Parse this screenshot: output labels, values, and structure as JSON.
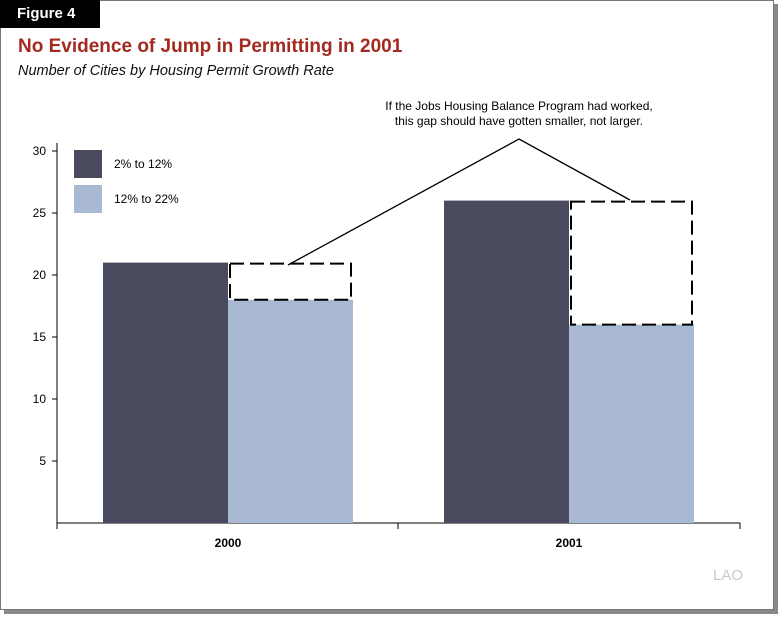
{
  "figure_label": "Figure 4",
  "watermark": "LAO",
  "chart_data": {
    "type": "bar",
    "title": "No Evidence of Jump in Permitting in 2001",
    "subtitle": "Number of Cities by Housing Permit Growth Rate",
    "categories": [
      "2000",
      "2001"
    ],
    "series": [
      {
        "name": "2% to 12%",
        "values": [
          21,
          26
        ],
        "color": "#4a4a5e"
      },
      {
        "name": "12% to 22%",
        "values": [
          18,
          16
        ],
        "color": "#a9b8d3"
      }
    ],
    "yticks": [
      5,
      10,
      15,
      20,
      25,
      30
    ],
    "ylim": [
      0,
      30
    ],
    "grid": false,
    "legend": "top-left",
    "annotation": [
      "If the Jobs Housing Balance Program had worked,",
      "this gap should have gotten smaller, not larger."
    ]
  }
}
